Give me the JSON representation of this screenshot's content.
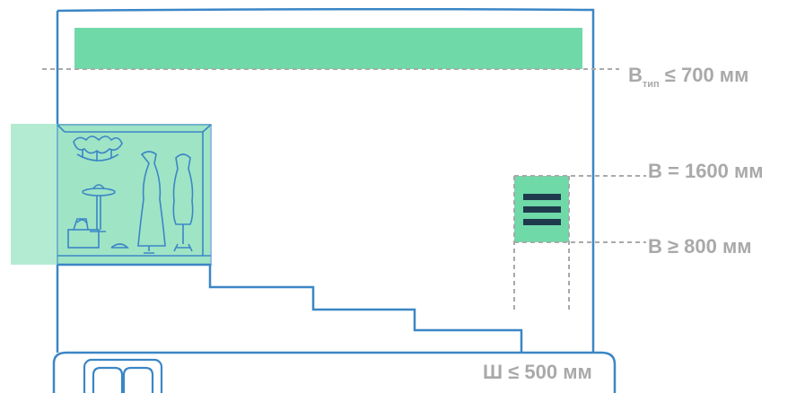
{
  "labels": {
    "typical_height": {
      "letter": "В",
      "subscript": "тип",
      "rest": " ≤ 700 мм"
    },
    "top_height": "В = 1600 мм",
    "bottom_height": "В ≥ 800 мм",
    "width": "Ш ≤ 500 мм"
  },
  "colors": {
    "accent": "#6fd9a8",
    "accent_light": "#b3ebd2",
    "outline": "#3b86c6",
    "dash": "#a9a9a9",
    "icon_bars": "#1f3a4d",
    "label_text": "#a9a9a9"
  },
  "icons": {
    "window_display": "shop-window-illustration-icon",
    "panel": "hamburger-menu-icon",
    "stairs": "staircase-outline",
    "book": "open-book-icon"
  }
}
